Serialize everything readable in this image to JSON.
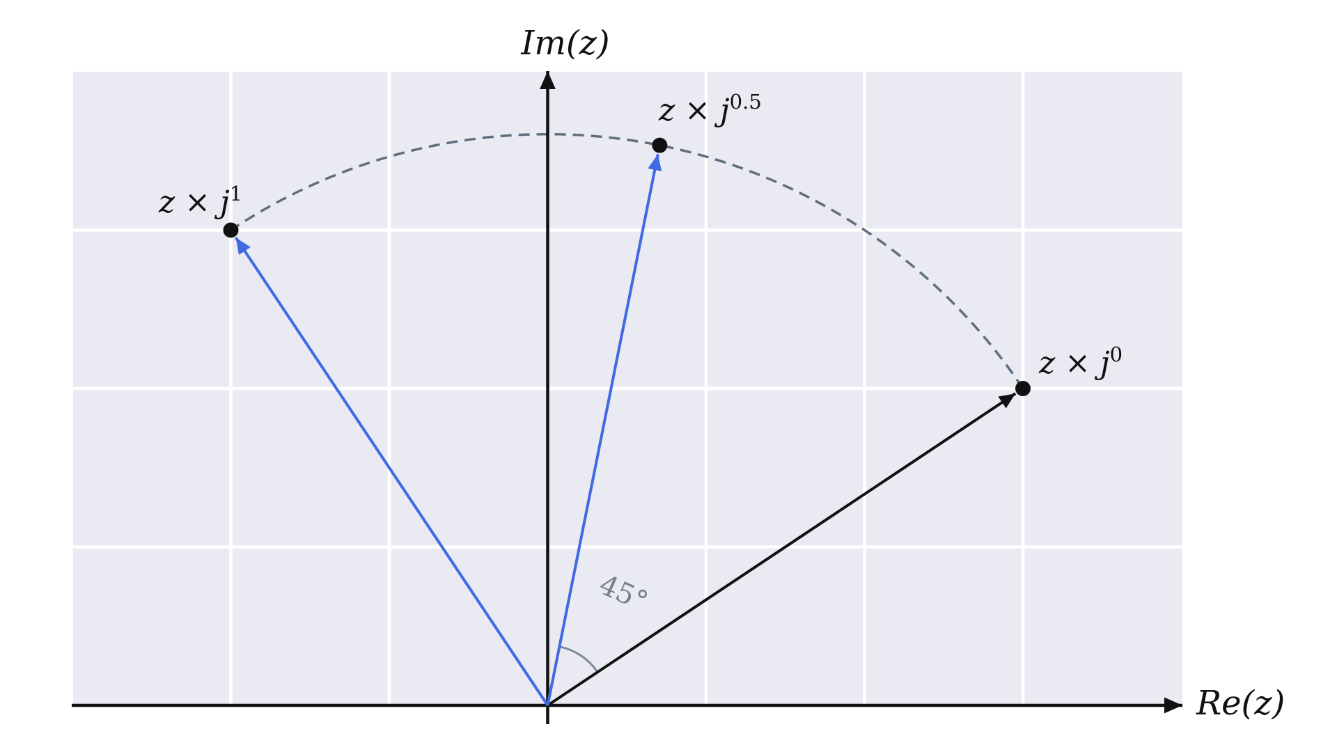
{
  "figure": {
    "y_axis_label": "Im(z)",
    "x_axis_label": "Re(z)",
    "angle_label": "45°"
  },
  "labels": {
    "zj0": {
      "base": "z × j",
      "exp": "0"
    },
    "zj05": {
      "base": "z × j",
      "exp": "0.5"
    },
    "zj1": {
      "base": "z × j",
      "exp": "1"
    }
  },
  "colors": {
    "page_background": "#ffffff",
    "plot_background": "#eaeaf2",
    "grid": "#ffffff",
    "axis": "#111111",
    "vector_blue": "#4169e1",
    "vector_black": "#111111",
    "rotation_arc": "#5f6e7e",
    "angle_arc": "#7e8a98",
    "angle_text": "#75818f",
    "point": "#111111"
  },
  "chart_data": {
    "type": "scatter",
    "title": "",
    "xlabel": "Re(z)",
    "ylabel": "Im(z)",
    "xlim": [
      -3,
      4
    ],
    "ylim": [
      0,
      4
    ],
    "grid": true,
    "legend": false,
    "points": [
      {
        "name": "z × j^0",
        "x": 3.0,
        "y": 2.0,
        "angle_deg": 33.69,
        "vector_color": "#111111"
      },
      {
        "name": "z × j^0.5",
        "x": 0.7071,
        "y": 3.5355,
        "angle_deg": 78.69,
        "vector_color": "#4169e1"
      },
      {
        "name": "z × j^1",
        "x": -2.0,
        "y": 3.0,
        "angle_deg": 123.69,
        "vector_color": "#4169e1"
      }
    ],
    "magnitude": 3.6056,
    "rotation_per_step_deg": 45,
    "annotation": {
      "text": "45°",
      "between_angles_deg": [
        33.69,
        78.69
      ]
    }
  }
}
